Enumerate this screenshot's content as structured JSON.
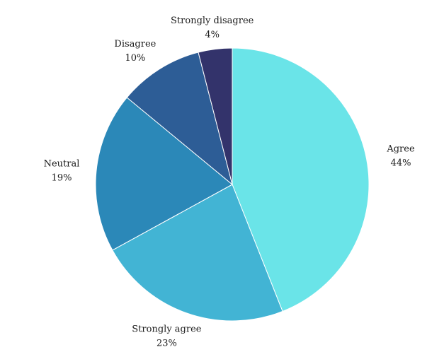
{
  "chart_data": {
    "type": "pie",
    "slices": [
      {
        "label": "Agree",
        "value": 44,
        "value_label": "44%",
        "color": "#6ae4e8"
      },
      {
        "label": "Strongly agree",
        "value": 23,
        "value_label": "23%",
        "color": "#42b4d4"
      },
      {
        "label": "Neutral",
        "value": 19,
        "value_label": "19%",
        "color": "#2b88b8"
      },
      {
        "label": "Disagree",
        "value": 10,
        "value_label": "10%",
        "color": "#2d5d96"
      },
      {
        "label": "Strongly disagree",
        "value": 4,
        "value_label": "4%",
        "color": "#33336b"
      }
    ],
    "start_angle": "top",
    "direction": "clockwise",
    "legend": "none",
    "labels": "outside"
  }
}
